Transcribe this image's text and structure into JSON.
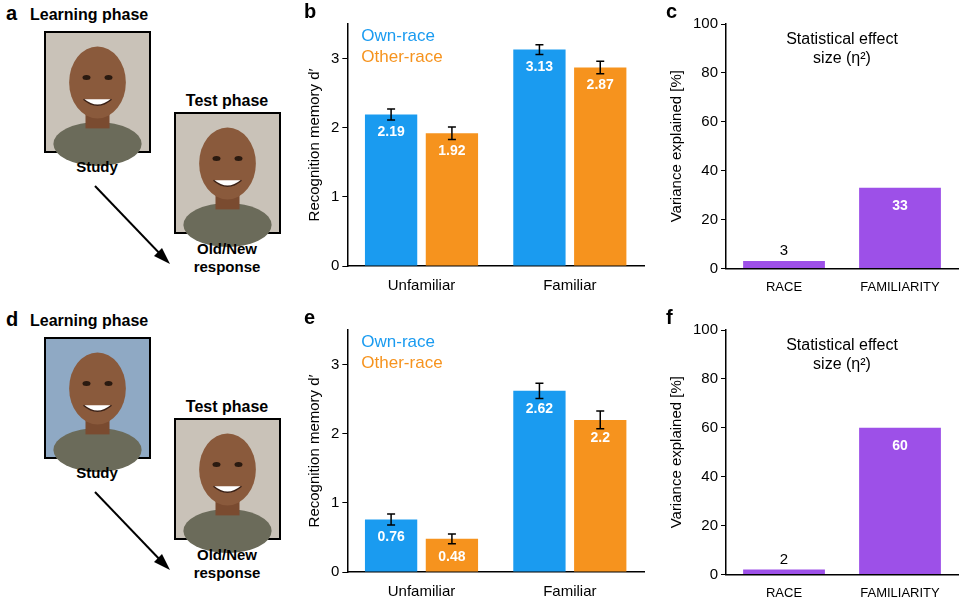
{
  "diagrams": [
    {
      "panel_label": "a",
      "learning_title": "Learning phase",
      "study_label": "Study",
      "test_title": "Test phase",
      "response_label": "Old/New response"
    },
    {
      "panel_label": "d",
      "learning_title": "Learning phase",
      "study_label": "Study",
      "test_title": "Test phase",
      "response_label": "Old/New response"
    }
  ],
  "chart_data": [
    {
      "panel_label": "b",
      "type": "bar",
      "y_label": "Recognition memory d′",
      "categories": [
        "Unfamiliar",
        "Familiar"
      ],
      "series": [
        {
          "name": "Own-race",
          "color": "#1a9bf0",
          "values": [
            2.19,
            3.13
          ],
          "errors": [
            0.08,
            0.07
          ]
        },
        {
          "name": "Other-race",
          "color": "#f6931e",
          "values": [
            1.92,
            2.87
          ],
          "errors": [
            0.09,
            0.09
          ]
        }
      ],
      "ylim": [
        0,
        3.5
      ],
      "yticks": [
        0,
        1,
        2,
        3
      ],
      "grid": false,
      "legend": "top-left",
      "data_labels": true
    },
    {
      "panel_label": "c",
      "type": "bar",
      "title": "Statistical effect size (η²)",
      "y_label": "Variance explained [%]",
      "categories": [
        "RACE",
        "FAMILIARITY"
      ],
      "values": [
        3,
        33
      ],
      "color": "#9d50e8",
      "ylim": [
        0,
        100
      ],
      "yticks": [
        0,
        20,
        40,
        60,
        80,
        100
      ],
      "grid": false,
      "data_labels": true
    },
    {
      "panel_label": "e",
      "type": "bar",
      "y_label": "Recognition memory d′",
      "categories": [
        "Unfamiliar",
        "Familiar"
      ],
      "series": [
        {
          "name": "Own-race",
          "color": "#1a9bf0",
          "values": [
            0.76,
            2.62
          ],
          "errors": [
            0.08,
            0.11
          ]
        },
        {
          "name": "Other-race",
          "color": "#f6931e",
          "values": [
            0.48,
            2.2
          ],
          "errors": [
            0.07,
            0.13
          ]
        }
      ],
      "ylim": [
        0,
        3.5
      ],
      "yticks": [
        0,
        1,
        2,
        3
      ],
      "grid": false,
      "legend": "top-left",
      "data_labels": true
    },
    {
      "panel_label": "f",
      "type": "bar",
      "title": "Statistical effect size (η²)",
      "y_label": "Variance explained [%]",
      "categories": [
        "RACE",
        "FAMILIARITY"
      ],
      "values": [
        2,
        60
      ],
      "color": "#9d50e8",
      "ylim": [
        0,
        100
      ],
      "yticks": [
        0,
        20,
        40,
        60,
        80,
        100
      ],
      "grid": false,
      "data_labels": true
    }
  ]
}
